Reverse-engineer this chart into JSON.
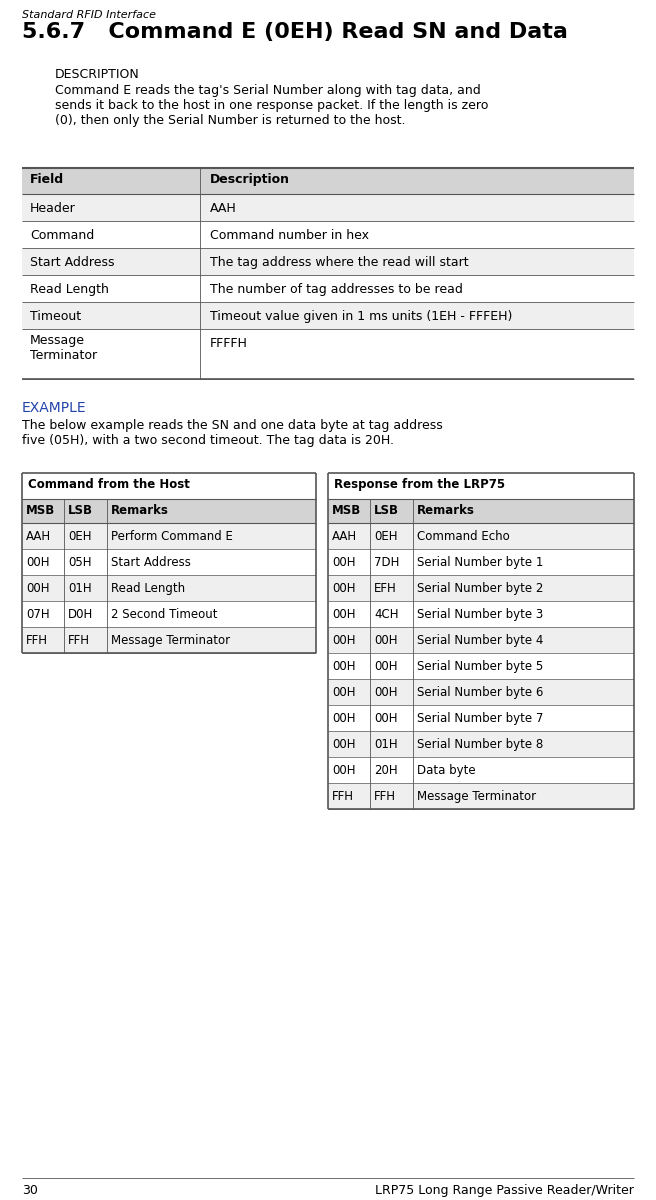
{
  "page_header": "Standard RFID Interface",
  "page_number": "30",
  "page_footer": "LRP75 Long Range Passive Reader/Writer",
  "section_title": "5.6.7   Command E (0EH) Read SN and Data",
  "description_label": "DESCRIPTION",
  "description_text": "Command E reads the tag's Serial Number along with tag data, and\nsends it back to the host in one response packet. If the length is zero\n(0), then only the Serial Number is returned to the host.",
  "field_table_header": [
    "Field",
    "Description"
  ],
  "field_table_rows": [
    [
      "Header",
      "AAH"
    ],
    [
      "Command",
      "Command number in hex"
    ],
    [
      "Start Address",
      "The tag address where the read will start"
    ],
    [
      "Read Length",
      "The number of tag addresses to be read"
    ],
    [
      "Timeout",
      "Timeout value given in 1 ms units (1EH - FFFEH)"
    ],
    [
      "Message\nTerminator",
      "FFFFH"
    ]
  ],
  "example_label": "EXAMPLE",
  "example_text": "The below example reads the SN and one data byte at tag address\nfive (05H), with a two second timeout. The tag data is 20H.",
  "host_table_title": "Command from the Host",
  "host_table_header": [
    "MSB",
    "LSB",
    "Remarks"
  ],
  "host_table_rows": [
    [
      "AAH",
      "0EH",
      "Perform Command E"
    ],
    [
      "00H",
      "05H",
      "Start Address"
    ],
    [
      "00H",
      "01H",
      "Read Length"
    ],
    [
      "07H",
      "D0H",
      "2 Second Timeout"
    ],
    [
      "FFH",
      "FFH",
      "Message Terminator"
    ]
  ],
  "response_table_title": "Response from the LRP75",
  "response_table_header": [
    "MSB",
    "LSB",
    "Remarks"
  ],
  "response_table_rows": [
    [
      "AAH",
      "0EH",
      "Command Echo"
    ],
    [
      "00H",
      "7DH",
      "Serial Number byte 1"
    ],
    [
      "00H",
      "EFH",
      "Serial Number byte 2"
    ],
    [
      "00H",
      "4CH",
      "Serial Number byte 3"
    ],
    [
      "00H",
      "00H",
      "Serial Number byte 4"
    ],
    [
      "00H",
      "00H",
      "Serial Number byte 5"
    ],
    [
      "00H",
      "00H",
      "Serial Number byte 6"
    ],
    [
      "00H",
      "00H",
      "Serial Number byte 7"
    ],
    [
      "00H",
      "01H",
      "Serial Number byte 8"
    ],
    [
      "00H",
      "20H",
      "Data byte"
    ],
    [
      "FFH",
      "FFH",
      "Message Terminator"
    ]
  ],
  "bg_color": "#ffffff",
  "header_bg": "#d3d3d3",
  "table_line_color": "#555555"
}
